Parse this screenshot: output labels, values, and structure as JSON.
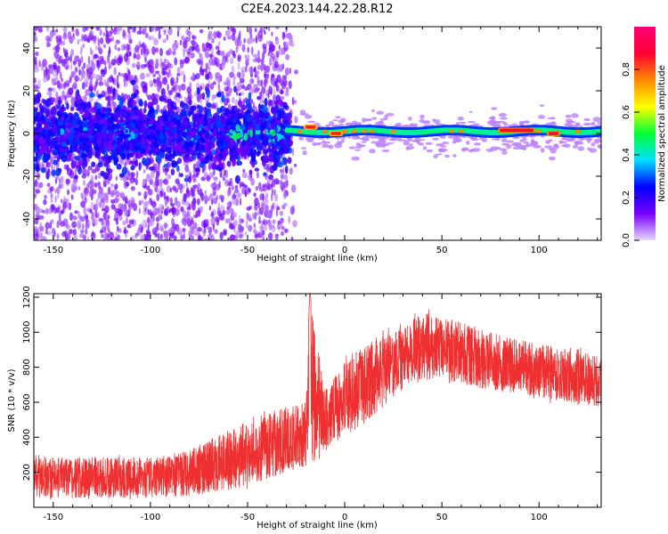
{
  "title": "C2E4.2023.144.22.28.R12",
  "chart_data": [
    {
      "type": "heatmap",
      "xlabel": "Height of straight line (km)",
      "ylabel": "Frequency (Hz)",
      "xlim": [
        -160,
        132
      ],
      "ylim": [
        -50,
        50
      ],
      "xticks": [
        -150,
        -100,
        -50,
        0,
        50,
        100
      ],
      "yticks": [
        -40,
        -20,
        0,
        20,
        40
      ],
      "colorbar": {
        "label": "Normalized spectral amplitude",
        "range": [
          0.0,
          1.0
        ],
        "ticks": [
          0.0,
          0.2,
          0.4,
          0.6,
          0.8
        ],
        "colormap": [
          "#e7d7ff",
          "#7700ff",
          "#0000ff",
          "#00e0ff",
          "#00ff33",
          "#ffff00",
          "#ff8800",
          "#ff0033",
          "#ff0077"
        ]
      },
      "features": [
        {
          "x_range": [
            -160,
            -30
          ],
          "freq_center": 0,
          "freq_halfwidth": 8,
          "amplitude": 0.25
        },
        {
          "x_range": [
            -30,
            132
          ],
          "freq_center": 1,
          "freq_halfwidth": 2.5,
          "amplitude": 0.45
        },
        {
          "x_range": [
            -20,
            -15
          ],
          "freq_center": 3,
          "freq_halfwidth": 1.5,
          "amplitude": 0.85
        },
        {
          "x_range": [
            -7,
            -2
          ],
          "freq_center": 0,
          "freq_halfwidth": 1.5,
          "amplitude": 0.85
        },
        {
          "x_range": [
            80,
            97
          ],
          "freq_center": 1.5,
          "freq_halfwidth": 1.5,
          "amplitude": 0.9
        },
        {
          "x_range": [
            105,
            110
          ],
          "freq_center": 0,
          "freq_halfwidth": 1.5,
          "amplitude": 0.9
        }
      ]
    },
    {
      "type": "line",
      "xlabel": "Height of straight line (km)",
      "ylabel": "SNR (10 * v/v)",
      "xlim": [
        -160,
        132
      ],
      "ylim": [
        0,
        1220
      ],
      "xticks": [
        -150,
        -100,
        -50,
        0,
        50,
        100
      ],
      "yticks": [
        200,
        400,
        600,
        800,
        1000,
        1200
      ],
      "color": "#f03030",
      "envelope": {
        "x": [
          -160,
          -150,
          -120,
          -100,
          -80,
          -70,
          -60,
          -50,
          -40,
          -30,
          -20,
          -18,
          -10,
          0,
          10,
          20,
          30,
          40,
          50,
          60,
          80,
          100,
          120,
          132
        ],
        "low": [
          40,
          40,
          40,
          40,
          50,
          60,
          80,
          100,
          140,
          180,
          200,
          150,
          300,
          380,
          450,
          550,
          650,
          700,
          720,
          680,
          640,
          600,
          570,
          560
        ],
        "high": [
          320,
          300,
          300,
          300,
          340,
          400,
          460,
          520,
          560,
          600,
          620,
          1230,
          700,
          860,
          950,
          1020,
          1050,
          1150,
          1100,
          1080,
          1000,
          950,
          920,
          880
        ]
      }
    }
  ]
}
